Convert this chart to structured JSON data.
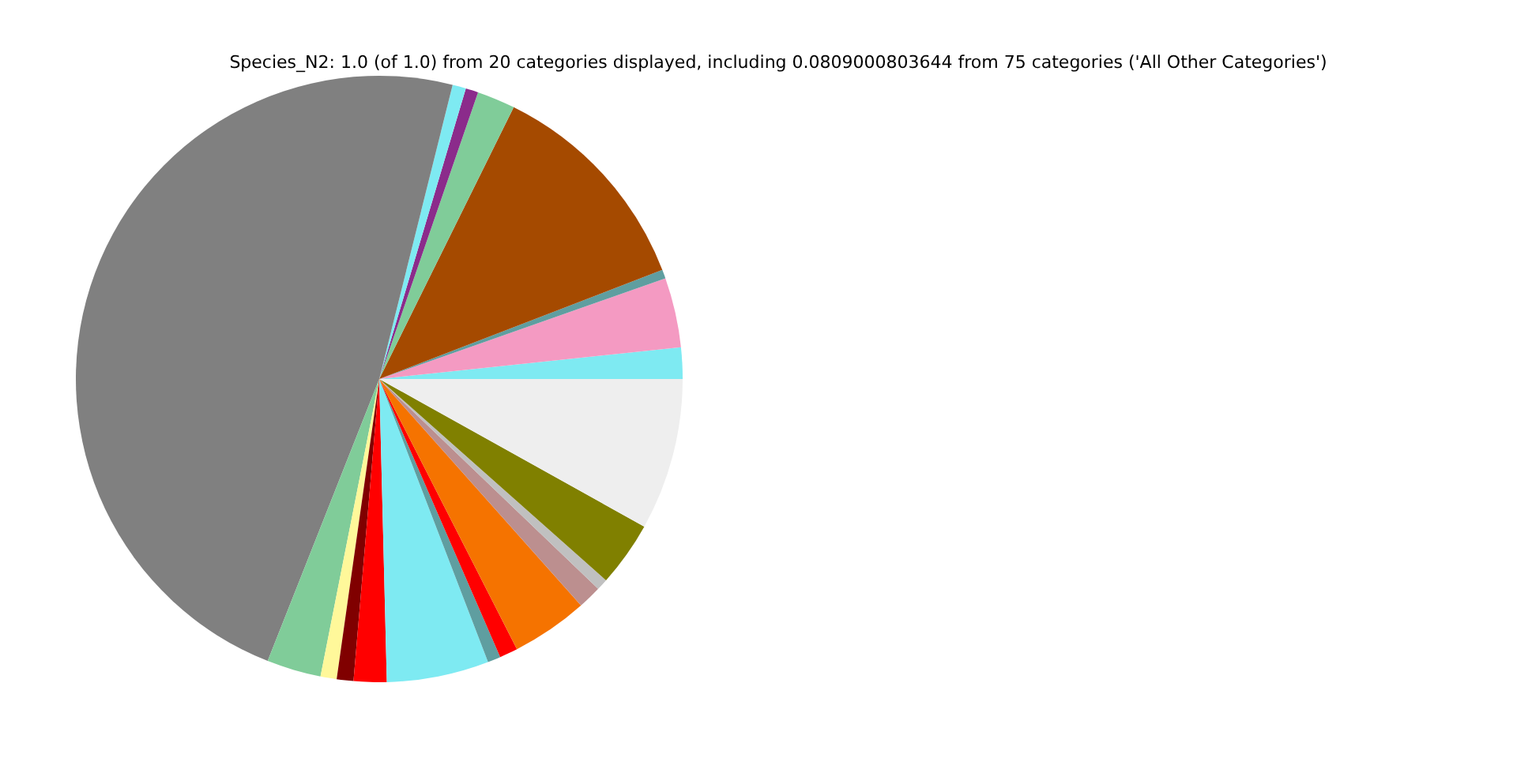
{
  "chart_data": {
    "type": "pie",
    "title": "Species_N2: 1.0 (of 1.0) from 20 categories displayed, including 0.0809000803644 from 75 categories ('All Other Categories')",
    "categories": [
      null,
      null,
      null,
      null,
      null,
      null,
      null,
      null,
      null,
      null,
      null,
      null,
      null,
      null,
      null,
      null,
      null,
      null,
      null,
      null
    ],
    "values": [
      1.67,
      3.72,
      0.47,
      11.83,
      2.03,
      0.67,
      0.72,
      47.89,
      2.89,
      0.86,
      0.89,
      1.75,
      5.44,
      0.69,
      0.97,
      4.08,
      1.25,
      0.61,
      3.47,
      8.09
    ],
    "colors": [
      "#7eeaf2",
      "#f49ac2",
      "#5f9ea0",
      "#a54a00",
      "#80cc99",
      "#8b2b8b",
      "#7eeaf2",
      "#808080",
      "#80cc99",
      "#fff89a",
      "#800000",
      "#ff0000",
      "#7eeaf2",
      "#5f9ea0",
      "#ff0000",
      "#f57300",
      "#bc8f8f",
      "#c0c0c0",
      "#808000",
      "#eeeeee"
    ],
    "legend": false
  }
}
